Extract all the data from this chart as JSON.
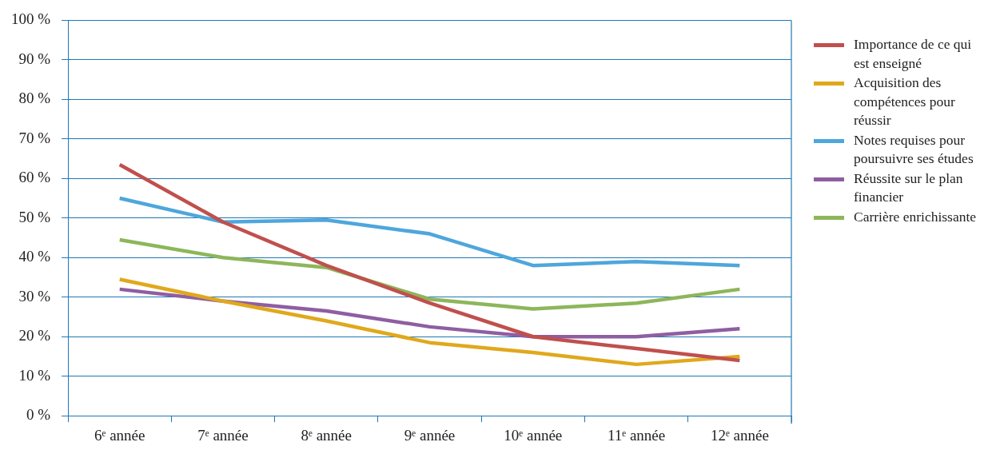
{
  "chart_data": {
    "type": "line",
    "categories": [
      "6ᵉ année",
      "7ᵉ année",
      "8ᵉ année",
      "9ᵉ année",
      "10ᵉ année",
      "11ᵉ année",
      "12ᵉ année"
    ],
    "series": [
      {
        "name": "Importance de ce qui est enseigné",
        "color": "#c0504d",
        "values": [
          63.5,
          49,
          38,
          28.5,
          20,
          17,
          14
        ]
      },
      {
        "name": "Acquisition des compétences pour réussir",
        "color": "#e0a81c",
        "values": [
          34.5,
          29,
          24,
          18.5,
          16,
          13,
          15
        ]
      },
      {
        "name": "Notes requises pour poursuivre ses études",
        "color": "#4ea6dc",
        "values": [
          55,
          49,
          49.5,
          46,
          38,
          39,
          38
        ]
      },
      {
        "name": "Réussite sur le plan financier",
        "color": "#8e5ea2",
        "values": [
          32,
          29,
          26.5,
          22.5,
          20,
          20,
          22
        ]
      },
      {
        "name": "Carrière enrichissante",
        "color": "#8db65a",
        "values": [
          44.5,
          40,
          37.5,
          29.5,
          27,
          28.5,
          32
        ]
      }
    ],
    "ylim": [
      0,
      100
    ],
    "yticks": [
      {
        "value": 0,
        "label": "0 %"
      },
      {
        "value": 10,
        "label": "10 %"
      },
      {
        "value": 20,
        "label": "20 %"
      },
      {
        "value": 30,
        "label": "30 %"
      },
      {
        "value": 40,
        "label": "40 %"
      },
      {
        "value": 50,
        "label": "50 %"
      },
      {
        "value": 60,
        "label": "60 %"
      },
      {
        "value": 70,
        "label": "70 %"
      },
      {
        "value": 80,
        "label": "80 %"
      },
      {
        "value": 90,
        "label": "90 %"
      },
      {
        "value": 100,
        "label": "100 %"
      }
    ],
    "grid": "y",
    "legend": "right",
    "marker": "none",
    "line_style": "solid"
  }
}
